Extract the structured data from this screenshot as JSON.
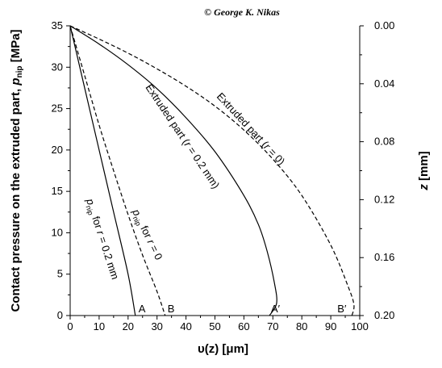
{
  "chart_data": {
    "type": "line",
    "copyright": "© George K. Nikas",
    "xlabel": "υ(z) [μm]",
    "ylabel_left": "Contact pressure on the extruded part, p_nip [MPa]",
    "ylabel_right": "z [mm]",
    "xlim": [
      0,
      100
    ],
    "ylim_left": [
      0,
      35
    ],
    "ylim_right": [
      0.2,
      0.0
    ],
    "x_ticks": [
      "0",
      "10",
      "20",
      "30",
      "40",
      "50",
      "60",
      "70",
      "80",
      "90",
      "100"
    ],
    "y_left_ticks": [
      "0",
      "5",
      "10",
      "15",
      "20",
      "25",
      "30",
      "35"
    ],
    "y_right_ticks": [
      "0.00",
      "0.04",
      "0.08",
      "0.12",
      "0.16",
      "0.20"
    ],
    "series": [
      {
        "id": "A",
        "style": "solid",
        "points": [
          [
            0,
            35
          ],
          [
            5,
            27.5
          ],
          [
            10,
            20
          ],
          [
            15,
            12.5
          ],
          [
            20,
            5
          ],
          [
            22.5,
            0
          ]
        ]
      },
      {
        "id": "B",
        "style": "dashed",
        "points": [
          [
            0,
            35
          ],
          [
            5,
            29
          ],
          [
            10,
            23
          ],
          [
            15,
            17.5
          ],
          [
            20,
            12.2
          ],
          [
            25,
            7.3
          ],
          [
            30,
            2.9
          ],
          [
            32.8,
            0
          ]
        ]
      },
      {
        "id": "A'",
        "style": "solid",
        "points": [
          [
            0,
            35
          ],
          [
            10,
            32.8
          ],
          [
            20,
            30.3
          ],
          [
            30,
            27.4
          ],
          [
            40,
            23.9
          ],
          [
            50,
            19.8
          ],
          [
            60,
            14.5
          ],
          [
            65,
            11
          ],
          [
            68,
            7.8
          ],
          [
            70.5,
            4
          ],
          [
            71.3,
            1.5
          ],
          [
            68.8,
            0
          ]
        ]
      },
      {
        "id": "B'",
        "style": "dashed",
        "points": [
          [
            0,
            35
          ],
          [
            10,
            33.4
          ],
          [
            20,
            31.7
          ],
          [
            30,
            29.8
          ],
          [
            40,
            27.7
          ],
          [
            50,
            25.3
          ],
          [
            60,
            22.4
          ],
          [
            70,
            18.9
          ],
          [
            80,
            14.5
          ],
          [
            90,
            8.5
          ],
          [
            96,
            3.5
          ],
          [
            98,
            1.3
          ],
          [
            97.3,
            0
          ]
        ]
      }
    ],
    "annotations": {
      "end_labels": [
        "A",
        "B",
        "A′",
        "B′"
      ],
      "curve_labels": [
        {
          "text": "Extruded part (r = 0.2 mm)"
        },
        {
          "text": "Extruded part (r = 0)"
        },
        {
          "text": "p_nip for r = 0.2 mm"
        },
        {
          "text": "p_nip for r = 0"
        }
      ]
    }
  }
}
